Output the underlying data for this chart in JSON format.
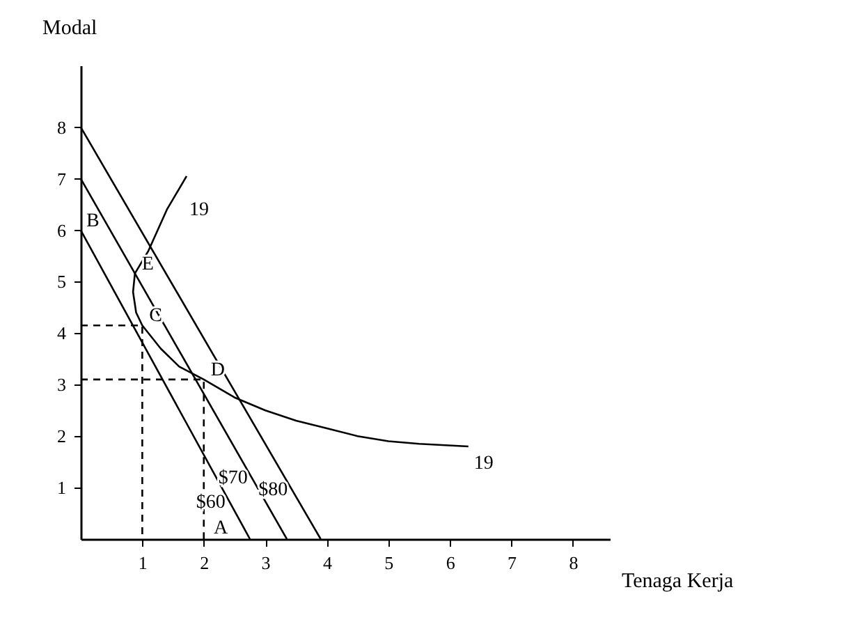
{
  "chart_data": {
    "type": "line",
    "xlabel": "Tenaga Kerja",
    "ylabel": "Modal",
    "xlim": [
      0,
      8.6
    ],
    "ylim": [
      0,
      9.2
    ],
    "xticks": [
      1,
      2,
      3,
      4,
      5,
      6,
      7,
      8
    ],
    "yticks": [
      1,
      2,
      3,
      4,
      5,
      6,
      7,
      8
    ],
    "grid": false,
    "marker": "none",
    "series": [
      {
        "name": "$60",
        "color": "#000000",
        "line_style": "solid",
        "x": [
          0,
          2.75
        ],
        "values": [
          6,
          0
        ]
      },
      {
        "name": "$70",
        "color": "#000000",
        "line_style": "solid",
        "x": [
          0,
          3.35
        ],
        "values": [
          7,
          0
        ]
      },
      {
        "name": "$80",
        "color": "#000000",
        "line_style": "solid",
        "x": [
          0,
          3.9
        ],
        "values": [
          8,
          0
        ]
      },
      {
        "name": "19",
        "color": "#000000",
        "line_style": "solid",
        "x": [
          1.72,
          1.4,
          1.1,
          0.88,
          0.85,
          0.9,
          1,
          1.3,
          1.6,
          2,
          2.5,
          3,
          3.5,
          4,
          4.5,
          5,
          5.5,
          6.3
        ],
        "values": [
          7.05,
          6.4,
          5.6,
          5.16,
          4.8,
          4.4,
          4.15,
          3.7,
          3.35,
          3.1,
          2.75,
          2.5,
          2.3,
          2.15,
          2,
          1.9,
          1.85,
          1.8
        ]
      },
      {
        "color": "#000000",
        "line_style": "dashed",
        "x": [
          0,
          1,
          1
        ],
        "values": [
          4.15,
          4.15,
          0
        ]
      },
      {
        "color": "#000000",
        "line_style": "dashed",
        "x": [
          0,
          2,
          2
        ],
        "values": [
          3.1,
          3.1,
          0
        ]
      }
    ],
    "annotations": [
      {
        "text": "A",
        "x": 2.75,
        "y": 0
      },
      {
        "text": "B",
        "x": 0,
        "y": 6
      },
      {
        "text": "C",
        "x": 1,
        "y": 4.15
      },
      {
        "text": "D",
        "x": 2,
        "y": 3.1
      },
      {
        "text": "E",
        "x": 0.88,
        "y": 5.16
      }
    ]
  }
}
